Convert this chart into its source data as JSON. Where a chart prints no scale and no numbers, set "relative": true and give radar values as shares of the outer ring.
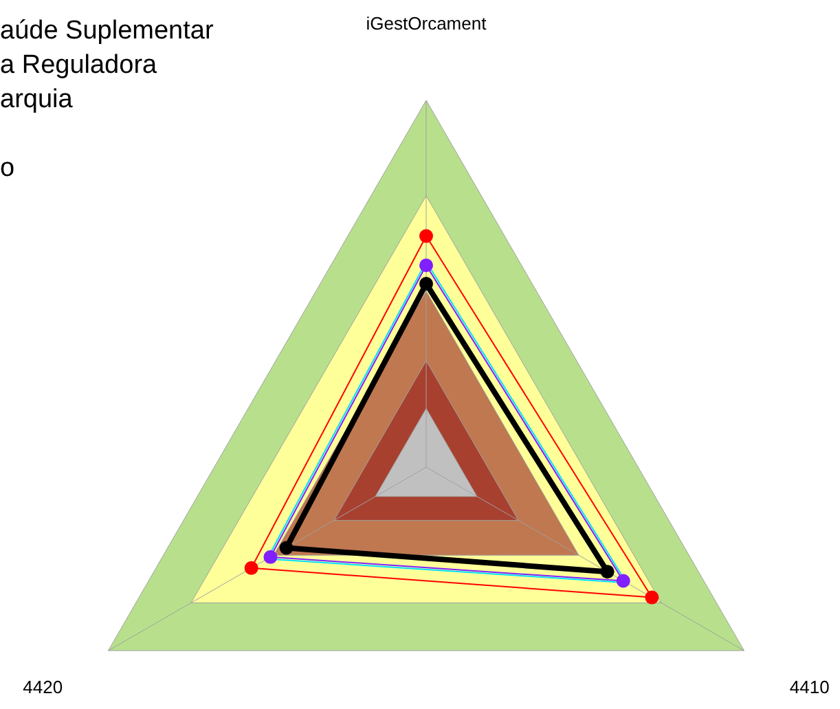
{
  "chart_data": {
    "type": "radar",
    "relative": true,
    "grid": true,
    "marker": "circle",
    "legend": false,
    "annotations": [
      "aúde Suplementar",
      "a Reguladora",
      "arquia",
      "o"
    ],
    "categories": [
      "iGestOrcament",
      "4410",
      "4420"
    ],
    "series": [
      {
        "color": "#ff0000",
        "values": [
          0.63,
          0.71,
          0.55
        ]
      },
      {
        "color": "#00e0ff",
        "values": [
          0.56,
          0.63,
          0.5
        ],
        "marker": "none"
      },
      {
        "color": "#8020ff",
        "values": [
          0.55,
          0.62,
          0.49
        ]
      },
      {
        "color": "#000000",
        "values": [
          0.5,
          0.57,
          0.44
        ]
      }
    ]
  }
}
